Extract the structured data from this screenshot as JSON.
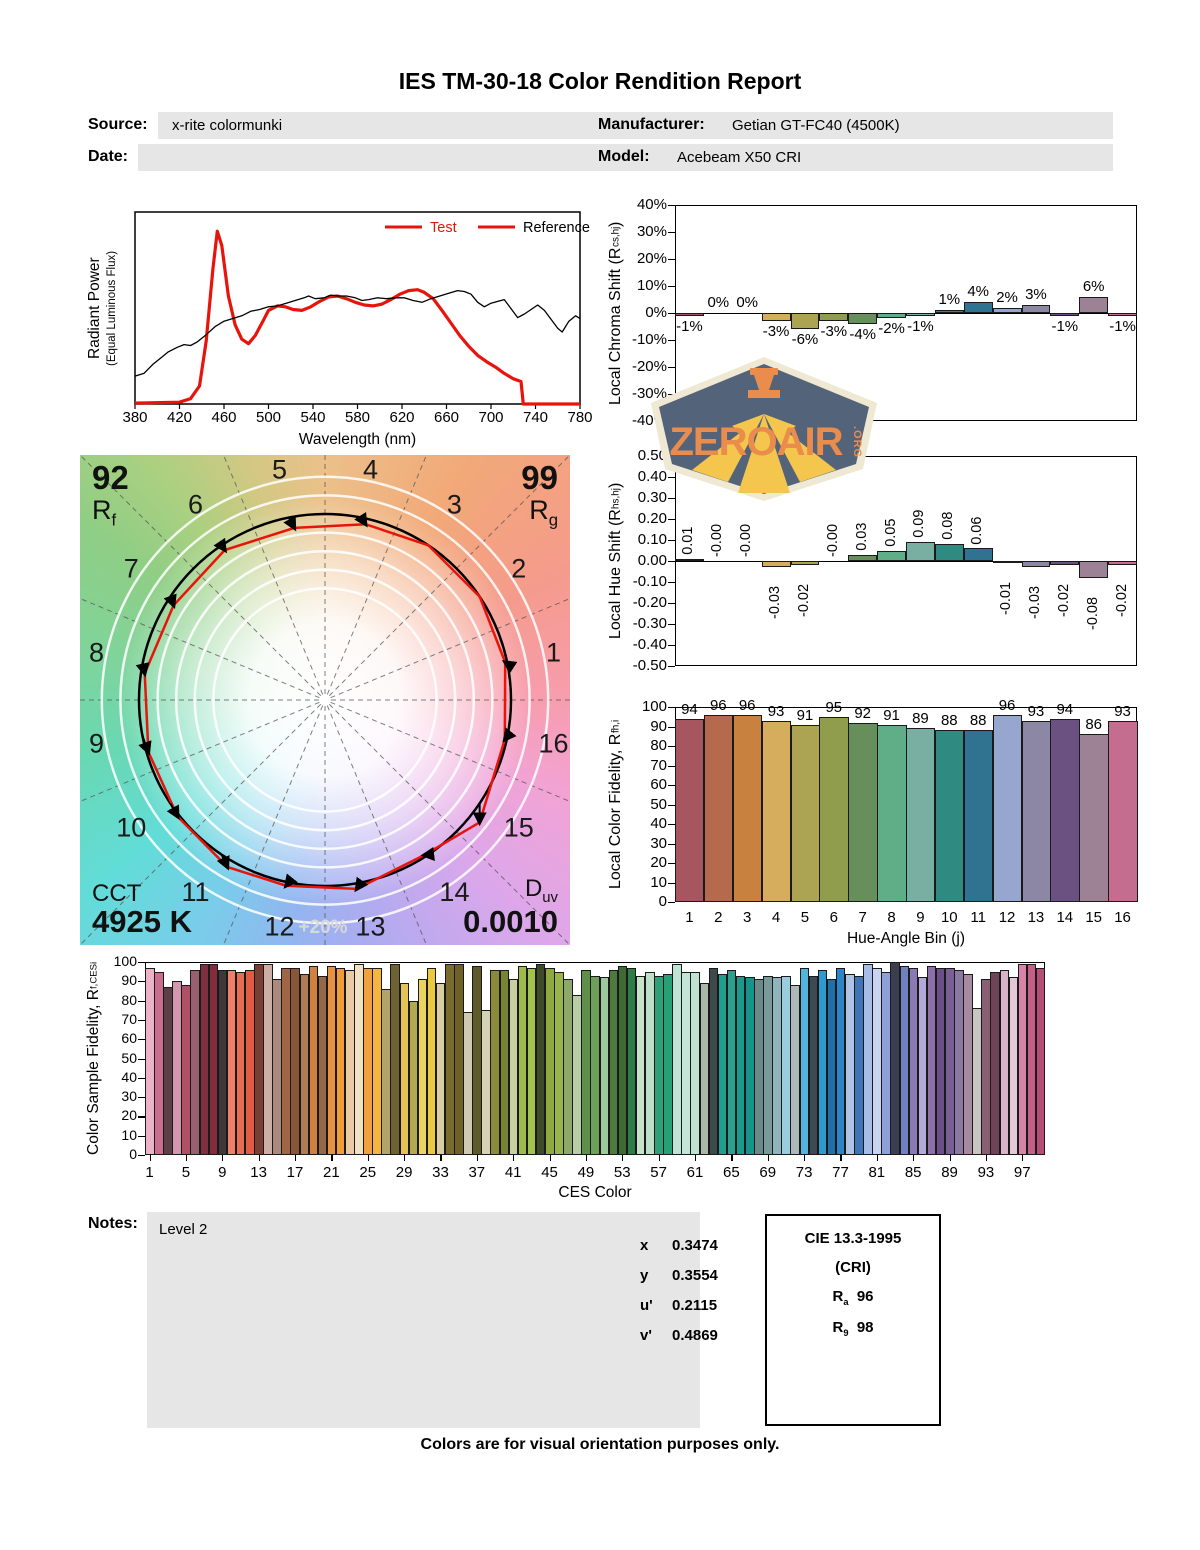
{
  "report": {
    "title": "IES TM-30-18 Color Rendition Report",
    "fields": {
      "source_label": "Source:",
      "source": "x-rite colormunki",
      "date_label": "Date:",
      "date": "",
      "manufacturer_label": "Manufacturer:",
      "manufacturer": "Getian GT-FC40 (4500K)",
      "model_label": "Model:",
      "model": "Acebeam X50 CRI"
    },
    "notes_label": "Notes:",
    "notes": "Level 2",
    "chromaticity": [
      {
        "label": "x",
        "value": "0.3474"
      },
      {
        "label": "y",
        "value": "0.3554"
      },
      {
        "label": "u'",
        "value": "0.2115"
      },
      {
        "label": "v'",
        "value": "0.4869"
      }
    ],
    "cie_box": {
      "title": "CIE 13.3-1995",
      "subtitle": "(CRI)",
      "ra_prefix": "R",
      "ra_sub": "a",
      "ra_value": "96",
      "r9_prefix": "R",
      "r9_sub": "9",
      "r9_value": "98"
    },
    "watermark": {
      "text": "ZEROAIR",
      "suffix": ".ORG",
      "bg": "#536379",
      "accent": "#ea8c4c",
      "rays": "#f4c64e",
      "border": "#efe8d2"
    },
    "footer": "Colors are for visual orientation purposes only."
  },
  "chart_data": [
    {
      "id": "spd",
      "type": "line",
      "xlabel": "Wavelength (nm)",
      "ylabel": "Radiant Power",
      "ylabel2": "(Equal Luminous Flux)",
      "xlim": [
        380,
        780
      ],
      "x_ticks": [
        380,
        420,
        460,
        500,
        540,
        580,
        620,
        660,
        700,
        740,
        780
      ],
      "legend": [
        {
          "label": "Test",
          "swatch": "#e8140c",
          "text_color": "#e8140c"
        },
        {
          "label": "Reference",
          "swatch": "#e8140c",
          "text_color": "#000000"
        }
      ],
      "series": [
        {
          "name": "Test",
          "color": "#e8140c",
          "width": 3.2,
          "points": [
            [
              380,
              0.005
            ],
            [
              420,
              0.01
            ],
            [
              430,
              0.03
            ],
            [
              438,
              0.1
            ],
            [
              444,
              0.35
            ],
            [
              450,
              0.75
            ],
            [
              454,
              0.96
            ],
            [
              458,
              0.88
            ],
            [
              464,
              0.6
            ],
            [
              470,
              0.44
            ],
            [
              476,
              0.36
            ],
            [
              482,
              0.335
            ],
            [
              488,
              0.38
            ],
            [
              495,
              0.46
            ],
            [
              500,
              0.52
            ],
            [
              508,
              0.545
            ],
            [
              515,
              0.54
            ],
            [
              522,
              0.525
            ],
            [
              530,
              0.52
            ],
            [
              538,
              0.54
            ],
            [
              546,
              0.57
            ],
            [
              554,
              0.595
            ],
            [
              562,
              0.6
            ],
            [
              570,
              0.585
            ],
            [
              578,
              0.565
            ],
            [
              586,
              0.55
            ],
            [
              594,
              0.545
            ],
            [
              602,
              0.555
            ],
            [
              610,
              0.58
            ],
            [
              618,
              0.61
            ],
            [
              626,
              0.63
            ],
            [
              634,
              0.635
            ],
            [
              640,
              0.62
            ],
            [
              648,
              0.585
            ],
            [
              656,
              0.52
            ],
            [
              664,
              0.45
            ],
            [
              672,
              0.38
            ],
            [
              680,
              0.32
            ],
            [
              688,
              0.27
            ],
            [
              696,
              0.235
            ],
            [
              704,
              0.205
            ],
            [
              712,
              0.17
            ],
            [
              720,
              0.14
            ],
            [
              727,
              0.125
            ],
            [
              729,
              0.0
            ],
            [
              780,
              0.0
            ]
          ]
        },
        {
          "name": "Reference",
          "color": "#000000",
          "width": 1.3,
          "points": [
            [
              380,
              0.155
            ],
            [
              388,
              0.17
            ],
            [
              396,
              0.22
            ],
            [
              404,
              0.26
            ],
            [
              410,
              0.29
            ],
            [
              418,
              0.315
            ],
            [
              424,
              0.33
            ],
            [
              430,
              0.325
            ],
            [
              436,
              0.345
            ],
            [
              444,
              0.385
            ],
            [
              452,
              0.43
            ],
            [
              460,
              0.46
            ],
            [
              468,
              0.475
            ],
            [
              476,
              0.49
            ],
            [
              484,
              0.515
            ],
            [
              492,
              0.525
            ],
            [
              500,
              0.54
            ],
            [
              508,
              0.545
            ],
            [
              516,
              0.56
            ],
            [
              524,
              0.575
            ],
            [
              532,
              0.59
            ],
            [
              536,
              0.6
            ],
            [
              542,
              0.585
            ],
            [
              550,
              0.59
            ],
            [
              556,
              0.605
            ],
            [
              562,
              0.6
            ],
            [
              570,
              0.6
            ],
            [
              578,
              0.59
            ],
            [
              584,
              0.575
            ],
            [
              590,
              0.58
            ],
            [
              598,
              0.59
            ],
            [
              606,
              0.585
            ],
            [
              614,
              0.59
            ],
            [
              622,
              0.59
            ],
            [
              630,
              0.575
            ],
            [
              638,
              0.565
            ],
            [
              646,
              0.585
            ],
            [
              654,
              0.6
            ],
            [
              662,
              0.615
            ],
            [
              670,
              0.63
            ],
            [
              676,
              0.625
            ],
            [
              682,
              0.61
            ],
            [
              688,
              0.565
            ],
            [
              694,
              0.54
            ],
            [
              700,
              0.56
            ],
            [
              706,
              0.57
            ],
            [
              712,
              0.58
            ],
            [
              718,
              0.53
            ],
            [
              724,
              0.48
            ],
            [
              730,
              0.5
            ],
            [
              736,
              0.525
            ],
            [
              742,
              0.55
            ],
            [
              748,
              0.52
            ],
            [
              754,
              0.47
            ],
            [
              760,
              0.42
            ],
            [
              764,
              0.4
            ],
            [
              770,
              0.46
            ],
            [
              776,
              0.49
            ],
            [
              780,
              0.475
            ]
          ]
        }
      ]
    },
    {
      "id": "chroma_shift",
      "type": "bar",
      "ylabel_prefix": "Local Chroma Shift (R",
      "ylabel_sub": "cs,hj",
      "ylabel_suffix": ")",
      "ylim": [
        -40,
        40
      ],
      "ytick_step": 10,
      "tick_suffix": "%",
      "categories": [
        1,
        2,
        3,
        4,
        5,
        6,
        7,
        8,
        9,
        10,
        11,
        12,
        13,
        14,
        15,
        16
      ],
      "values": [
        -1,
        0,
        0,
        -3,
        -6,
        -3,
        -4,
        -2,
        -1,
        1,
        4,
        2,
        3,
        -1,
        6,
        -1
      ],
      "value_labels": [
        "-1%",
        "0%",
        "0%",
        "-3%",
        "-6%",
        "-3%",
        "-4%",
        "-2%",
        "-1%",
        "1%",
        "4%",
        "2%",
        "3%",
        "-1%",
        "6%",
        "-1%"
      ],
      "colors": [
        "#A5565F",
        "#B56A4D",
        "#C8813F",
        "#D6AC5D",
        "#ACA452",
        "#909D4D",
        "#678F5C",
        "#5FAE87",
        "#79AFA3",
        "#2F8B81",
        "#2F7391",
        "#97A6CE",
        "#8D87A6",
        "#6B5181",
        "#9D8195",
        "#C46D8F"
      ]
    },
    {
      "id": "hue_shift",
      "type": "bar",
      "ylabel_prefix": "Local Hue Shift (R",
      "ylabel_sub": "hs,hj",
      "ylabel_suffix": ")",
      "ylim": [
        -0.5,
        0.5
      ],
      "ytick_step": 0.1,
      "tick_decimals": 2,
      "categories": [
        1,
        2,
        3,
        4,
        5,
        6,
        7,
        8,
        9,
        10,
        11,
        12,
        13,
        14,
        15,
        16
      ],
      "values": [
        0.01,
        0,
        0,
        -0.03,
        -0.02,
        0,
        0.03,
        0.05,
        0.09,
        0.08,
        0.06,
        -0.01,
        -0.03,
        -0.02,
        -0.08,
        -0.02
      ],
      "value_labels": [
        "0.01",
        "-0.00",
        "-0.00",
        "-0.03",
        "-0.02",
        "-0.00",
        "0.03",
        "0.05",
        "0.09",
        "0.08",
        "0.06",
        "-0.01",
        "-0.03",
        "-0.02",
        "-0.08",
        "-0.02"
      ],
      "colors": [
        "#A5565F",
        "#B56A4D",
        "#C8813F",
        "#D6AC5D",
        "#ACA452",
        "#909D4D",
        "#678F5C",
        "#5FAE87",
        "#79AFA3",
        "#2F8B81",
        "#2F7391",
        "#97A6CE",
        "#8D87A6",
        "#6B5181",
        "#9D8195",
        "#C46D8F"
      ]
    },
    {
      "id": "local_fidelity",
      "type": "bar",
      "ylabel_prefix": "Local Color Fidelity, R",
      "ylabel_sub": "fh,i",
      "ylabel_suffix": "",
      "xlabel": "Hue-Angle Bin (j)",
      "ylim": [
        0,
        100
      ],
      "ytick_step": 10,
      "categories": [
        1,
        2,
        3,
        4,
        5,
        6,
        7,
        8,
        9,
        10,
        11,
        12,
        13,
        14,
        15,
        16
      ],
      "values": [
        94,
        96,
        96,
        93,
        91,
        95,
        92,
        91,
        89,
        88,
        88,
        96,
        93,
        94,
        86,
        93
      ],
      "colors": [
        "#A5565F",
        "#B56A4D",
        "#C8813F",
        "#D6AC5D",
        "#ACA452",
        "#909D4D",
        "#678F5C",
        "#5FAE87",
        "#79AFA3",
        "#2F8B81",
        "#2F7391",
        "#97A6CE",
        "#8D87A6",
        "#6B5181",
        "#9D8195",
        "#C46D8F"
      ]
    },
    {
      "id": "cvg",
      "type": "color_vector",
      "rf_value": "92",
      "rf_prefix": "R",
      "rf_sub": "f",
      "rg_value": "99",
      "rg_prefix": "R",
      "rg_sub": "g",
      "cct_label": "CCT",
      "cct_value": "4925 K",
      "duv_prefix": "D",
      "duv_sub": "uv",
      "duv_value": "0.0010",
      "ring_label": "+20%",
      "bins": [
        1,
        2,
        3,
        4,
        5,
        6,
        7,
        8,
        9,
        10,
        11,
        12,
        13,
        14,
        15,
        16
      ],
      "chroma_shift_pct": [
        -1,
        0,
        0,
        -3,
        -6,
        -3,
        -4,
        -2,
        -1,
        1,
        4,
        2,
        3,
        -1,
        6,
        -1
      ],
      "hue_shift_rad": [
        0.01,
        0,
        0,
        -0.03,
        -0.02,
        0,
        0.03,
        0.05,
        0.09,
        0.08,
        0.06,
        -0.01,
        -0.03,
        -0.02,
        -0.08,
        -0.02
      ],
      "ring_factors": [
        0.6,
        0.7,
        0.8,
        0.9,
        1.1,
        1.2
      ],
      "test_color": "#e8140c",
      "reference_color": "#000000"
    },
    {
      "id": "ces",
      "type": "bar",
      "ylabel_prefix": "Color Sample Fidelity, R",
      "ylabel_sub": "f,CESi",
      "ylabel_suffix": "",
      "xlabel": "CES Color",
      "ylim": [
        0,
        100
      ],
      "ytick_step": 10,
      "x_ticks": [
        1,
        5,
        9,
        13,
        17,
        21,
        25,
        29,
        33,
        37,
        41,
        45,
        49,
        53,
        57,
        61,
        65,
        69,
        73,
        77,
        81,
        85,
        89,
        93,
        97
      ],
      "values": [
        97,
        95,
        87,
        90,
        88,
        96,
        99,
        99,
        96,
        96,
        95,
        96,
        99,
        99,
        91,
        97,
        97,
        94,
        98,
        93,
        98,
        97,
        96,
        99,
        97,
        97,
        86,
        99,
        89,
        80,
        91,
        97,
        89,
        99,
        99,
        74,
        98,
        75,
        96,
        96,
        91,
        98,
        97,
        99,
        97,
        95,
        91,
        83,
        96,
        93,
        92,
        96,
        98,
        97,
        93,
        95,
        93,
        94,
        99,
        95,
        95,
        89,
        97,
        94,
        96,
        93,
        92,
        91,
        93,
        92,
        93,
        88,
        97,
        93,
        96,
        91,
        97,
        94,
        93,
        99,
        97,
        95,
        100,
        98,
        97,
        92,
        98,
        97,
        97,
        96,
        94,
        76,
        91,
        95,
        96,
        92,
        99,
        99,
        97
      ],
      "colors": [
        "#EBB3C5",
        "#C96E8E",
        "#5C4048",
        "#D597AD",
        "#B05067",
        "#96606E",
        "#7C3040",
        "#812D3D",
        "#3F383A",
        "#EE8068",
        "#E76C54",
        "#E35A45",
        "#7C3D33",
        "#CBAEA5",
        "#AA897E",
        "#9E6644",
        "#8A5638",
        "#B07C55",
        "#D08140",
        "#96684A",
        "#E89140",
        "#F09B38",
        "#E9CAA3",
        "#F3E1C4",
        "#F0A23E",
        "#F6B53E",
        "#B2A26B",
        "#6E6233",
        "#E3C355",
        "#B4A84E",
        "#EAD35E",
        "#E9C93F",
        "#D9CDA2",
        "#7A6B2E",
        "#6E6224",
        "#CFC9B4",
        "#5F5A2A",
        "#D6D2B4",
        "#8A8A3A",
        "#778433",
        "#C9CFA0",
        "#9EBB4A",
        "#A2C34E",
        "#3F4A28",
        "#8FA93F",
        "#97B54A",
        "#8CA86A",
        "#B8CCA8",
        "#5F8F4A",
        "#6FA05A",
        "#9EC89E",
        "#4F7A3F",
        "#3E6B34",
        "#2F7D46",
        "#C8E2CC",
        "#BFE0C8",
        "#2FA077",
        "#27A077",
        "#BDE4D4",
        "#C4E4D8",
        "#BFE2D2",
        "#A9B8A9",
        "#3E4A4A",
        "#1F9E8E",
        "#2AA08E",
        "#199A8A",
        "#14948A",
        "#6A8A8A",
        "#7A9A9A",
        "#8FB4BC",
        "#9CCBE0",
        "#AEB8B8",
        "#55B4DC",
        "#3E4A52",
        "#2E9AD0",
        "#1F6FA8",
        "#2E84C8",
        "#AFC4E4",
        "#3E74B8",
        "#A8BCE8",
        "#C8D4F0",
        "#8FA0D8",
        "#3A3E4E",
        "#7080C0",
        "#8A7AB4",
        "#B4A8D8",
        "#8A6FA8",
        "#6A4F88",
        "#7A5F94",
        "#8A79A0",
        "#A88AA0",
        "#C9C6C2",
        "#8A5F74",
        "#6E4456",
        "#D8B4C8",
        "#E4C8D8",
        "#D884A8",
        "#C45F88",
        "#B44E74"
      ]
    }
  ]
}
